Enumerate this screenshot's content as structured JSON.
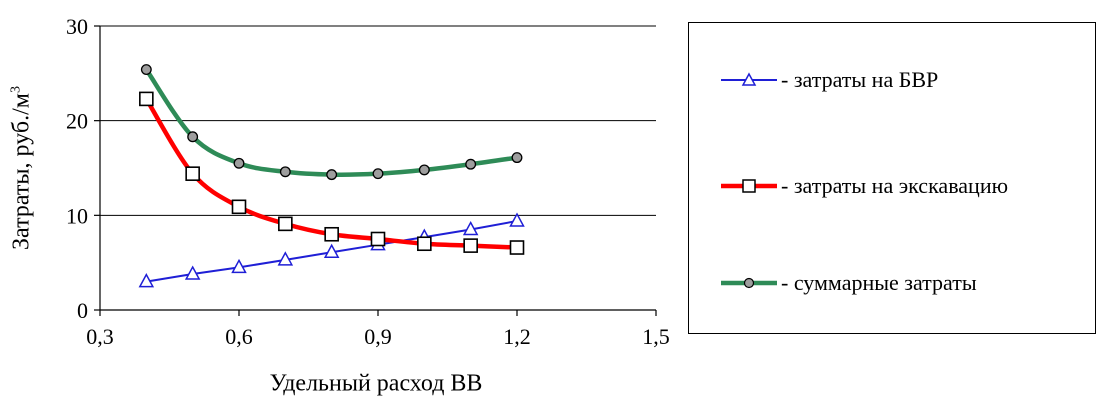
{
  "chart_data": {
    "type": "line",
    "xlabel": "Удельный расход ВВ",
    "ylabel": "Затраты, руб./м",
    "ylabel_superscript": "3",
    "xlim": [
      0.3,
      1.5
    ],
    "ylim": [
      0,
      30
    ],
    "x_ticks": [
      "0,3",
      "0,6",
      "0,9",
      "1,2",
      "1,5"
    ],
    "x_tick_values": [
      0.3,
      0.6,
      0.9,
      1.2,
      1.5
    ],
    "y_ticks": [
      "0",
      "10",
      "20",
      "30"
    ],
    "y_tick_values": [
      0,
      10,
      20,
      30
    ],
    "grid": "horizontal",
    "legend_placement": "right",
    "x": [
      0.4,
      0.5,
      0.6,
      0.7,
      0.8,
      0.9,
      1.0,
      1.1,
      1.2
    ],
    "series": [
      {
        "name": "- затраты на БВР",
        "color": "#1f1fd6",
        "marker": "triangle",
        "values": [
          3.0,
          3.8,
          4.5,
          5.3,
          6.1,
          6.9,
          7.7,
          8.5,
          9.4
        ]
      },
      {
        "name": "- затраты на экскавацию",
        "color": "#ff0000",
        "marker": "square",
        "values": [
          22.3,
          14.4,
          10.9,
          9.1,
          8.0,
          7.5,
          7.0,
          6.8,
          6.6
        ]
      },
      {
        "name": "- суммарные затраты",
        "color": "#2e8b57",
        "marker": "circle",
        "values": [
          25.4,
          18.3,
          15.5,
          14.6,
          14.3,
          14.4,
          14.8,
          15.4,
          16.1
        ]
      }
    ]
  }
}
